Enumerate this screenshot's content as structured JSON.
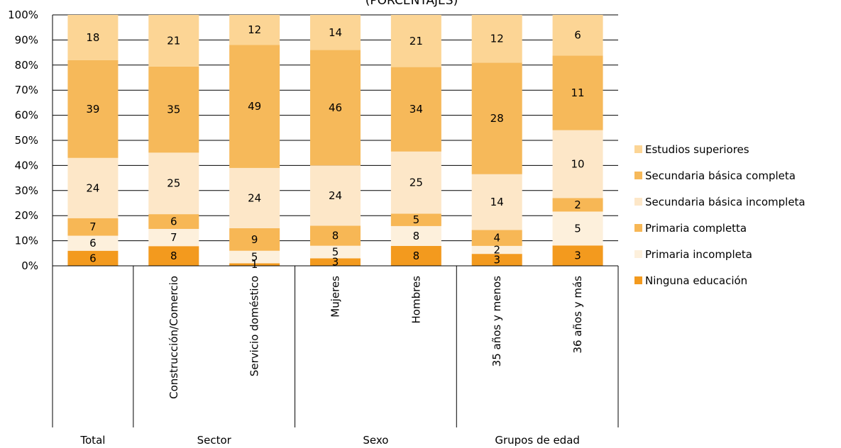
{
  "chart_data": {
    "type": "bar",
    "stacked": true,
    "percent": true,
    "title": "(PORCENTAJES)",
    "ylim": [
      0,
      100
    ],
    "y_ticks": [
      "0%",
      "10%",
      "20%",
      "30%",
      "40%",
      "50%",
      "60%",
      "70%",
      "80%",
      "90%",
      "100%"
    ],
    "grid": true,
    "legend_position": "right",
    "categories": [
      "Total",
      "Construcción/Comercio",
      "Servicio doméstico",
      "Mujeres",
      "Hombres",
      "35 años y menos",
      "36 años y más"
    ],
    "groups": [
      {
        "label": "Total",
        "categories": [
          "Total"
        ]
      },
      {
        "label": "Sector",
        "categories": [
          "Construcción/Comercio",
          "Servicio doméstico"
        ]
      },
      {
        "label": "Sexo",
        "categories": [
          "Mujeres",
          "Hombres"
        ]
      },
      {
        "label": "Grupos de edad",
        "categories": [
          "35 años y menos",
          "36 años y más"
        ]
      }
    ],
    "series": [
      {
        "name": "Ninguna educación",
        "color": "#f39a1e",
        "values": [
          6,
          8,
          1,
          3,
          8,
          3,
          3
        ]
      },
      {
        "name": "Primaria incompleta",
        "color": "#fdf0dc",
        "values": [
          6,
          7,
          5,
          5,
          8,
          2,
          5
        ]
      },
      {
        "name": "Primaria completta",
        "color": "#f7b755",
        "values": [
          7,
          6,
          9,
          8,
          5,
          4,
          2
        ]
      },
      {
        "name": "Secundaria básica incompleta",
        "color": "#fde7c8",
        "values": [
          24,
          25,
          24,
          24,
          25,
          14,
          10
        ]
      },
      {
        "name": "Secundaria básica completa",
        "color": "#f6b95a",
        "values": [
          39,
          35,
          49,
          46,
          34,
          28,
          11
        ]
      },
      {
        "name": "Estudios superiores",
        "color": "#fcd595",
        "values": [
          18,
          21,
          12,
          14,
          21,
          12,
          6
        ]
      }
    ]
  }
}
